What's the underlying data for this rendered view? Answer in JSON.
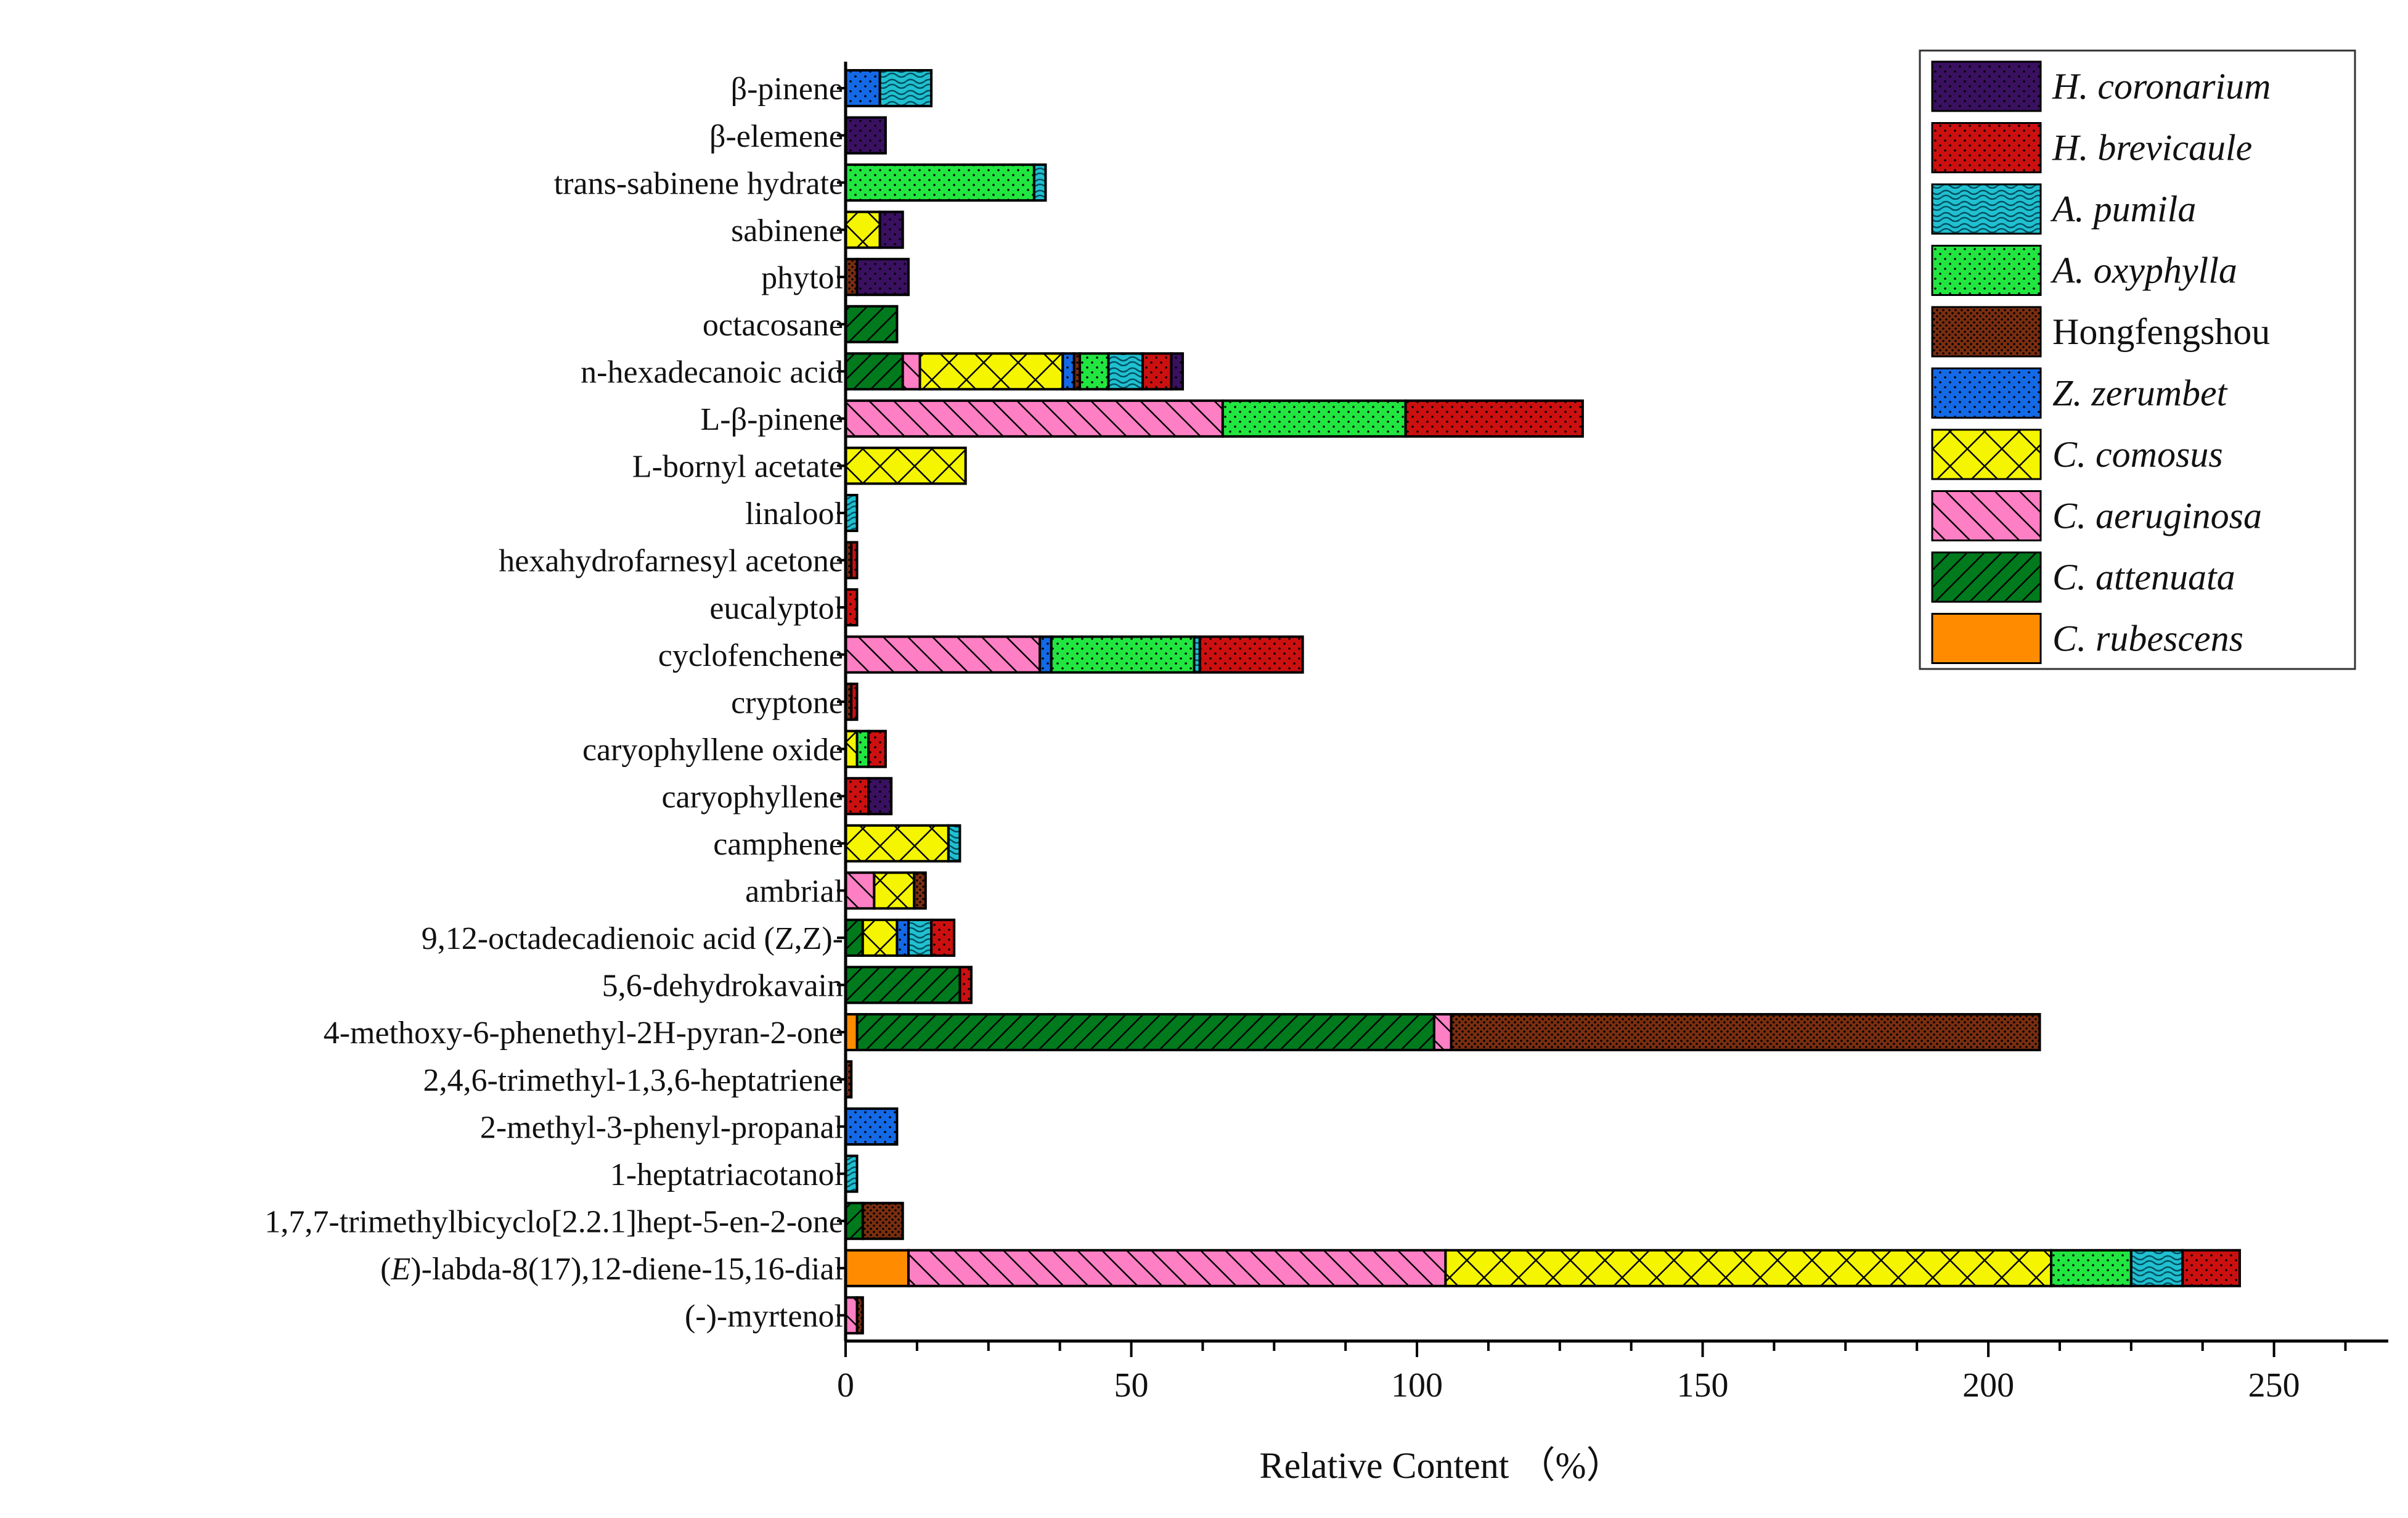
{
  "chart_data": {
    "type": "bar",
    "orientation": "horizontal",
    "stacked": true,
    "title": "",
    "xlabel": "Relative Content （%）",
    "ylabel": "",
    "xlim": [
      0,
      270
    ],
    "xticks": [
      "0",
      "50",
      "100",
      "150",
      "200",
      "250"
    ],
    "xtick_values": [
      0,
      50,
      100,
      150,
      200,
      250
    ],
    "grid": false,
    "legend_position": "top-right",
    "categories": [
      "β-pinene",
      "β-elemene",
      "trans-sabinene hydrate",
      "sabinene",
      "phytol",
      "octacosane",
      "n-hexadecanoic acid",
      "L-β-pinene",
      "L-bornyl acetate",
      "linalool",
      "hexahydrofarnesyl acetone",
      "eucalyptol",
      "cyclofenchene",
      "cryptone",
      "caryophyllene oxide",
      "caryophyllene",
      "camphene",
      "ambrial",
      "9,12-octadecadienoic acid (Z,Z)-",
      "5,6-dehydrokavain",
      "4-methoxy-6-phenethyl-2H-pyran-2-one",
      "2,4,6-trimethyl-1,3,6-heptatriene",
      "2-methyl-3-phenyl-propanal",
      "1-heptatriacotanol",
      "1,7,7-trimethylbicyclo[2.2.1]hept-5-en-2-one",
      "(E)-labda-8(17),12-diene-15,16-dial",
      "(-)-myrtenol"
    ],
    "category_italic_prefix": {
      "(E)-labda-8(17),12-diene-15,16-dial": "E"
    },
    "series": [
      {
        "name": "C. rubescens",
        "italic": true,
        "color": "#ff8c00",
        "pattern": "solid",
        "values": [
          0,
          0,
          0,
          0,
          0,
          0,
          0,
          0,
          0,
          0,
          0,
          0,
          0,
          0,
          0,
          0,
          0,
          0,
          0,
          0,
          2,
          0,
          0,
          0,
          0,
          11,
          0
        ]
      },
      {
        "name": "C. attenuata",
        "italic": true,
        "color": "#007a1c",
        "pattern": "diag-left",
        "values": [
          0,
          0,
          0,
          0,
          0,
          9,
          10,
          0,
          0,
          0,
          0,
          0,
          0,
          0,
          0,
          0,
          0,
          0,
          3,
          20,
          101,
          0,
          0,
          0,
          3,
          0,
          0
        ]
      },
      {
        "name": "C. aeruginosa",
        "italic": true,
        "color": "#ff7fc4",
        "pattern": "diag-right",
        "values": [
          0,
          0,
          0,
          0,
          0,
          0,
          3,
          66,
          0,
          0,
          0,
          0,
          34,
          0,
          0,
          0,
          0,
          5,
          0,
          0,
          3,
          0,
          0,
          0,
          0,
          94,
          2
        ]
      },
      {
        "name": "C. comosus",
        "italic": true,
        "color": "#f5f500",
        "pattern": "crosshatch",
        "values": [
          0,
          0,
          0,
          6,
          0,
          0,
          25,
          0,
          21,
          0,
          0,
          0,
          0,
          0,
          2,
          0,
          18,
          7,
          6,
          0,
          0,
          0,
          0,
          0,
          0,
          106,
          0
        ]
      },
      {
        "name": "Z. zerumbet",
        "italic": true,
        "color": "#1469e6",
        "pattern": "dots",
        "values": [
          6,
          0,
          0,
          0,
          0,
          0,
          2,
          0,
          0,
          0,
          0,
          0,
          2,
          0,
          0,
          0,
          0,
          0,
          2,
          0,
          0,
          0,
          9,
          0,
          0,
          0,
          0
        ]
      },
      {
        "name": "Hongfengshou",
        "italic": false,
        "color": "#7a2e10",
        "pattern": "dense-dots",
        "values": [
          0,
          0,
          0,
          0,
          2,
          0,
          1,
          0,
          0,
          0,
          1,
          0,
          0,
          1,
          0,
          0,
          0,
          2,
          0,
          0,
          103,
          1,
          0,
          0,
          7,
          0,
          1
        ]
      },
      {
        "name": "A. oxyphylla",
        "italic": true,
        "color": "#22e640",
        "pattern": "dots",
        "values": [
          0,
          0,
          33,
          0,
          0,
          0,
          5,
          32,
          0,
          0,
          0,
          0,
          25,
          0,
          2,
          0,
          0,
          0,
          0,
          0,
          0,
          0,
          0,
          0,
          0,
          14,
          0
        ]
      },
      {
        "name": "A. pumila",
        "italic": true,
        "color": "#20c0d0",
        "pattern": "waves",
        "values": [
          9,
          0,
          2,
          0,
          0,
          0,
          6,
          0,
          0,
          2,
          0,
          0,
          1,
          0,
          0,
          0,
          2,
          0,
          4,
          0,
          0,
          0,
          0,
          2,
          0,
          9,
          0
        ]
      },
      {
        "name": "H. brevicaule",
        "italic": true,
        "color": "#cc1010",
        "pattern": "dots",
        "values": [
          0,
          0,
          0,
          0,
          0,
          0,
          5,
          31,
          0,
          0,
          1,
          2,
          18,
          1,
          3,
          4,
          0,
          0,
          4,
          2,
          0,
          0,
          0,
          0,
          0,
          10,
          0
        ]
      },
      {
        "name": "H. coronarium",
        "italic": true,
        "color": "#3a1060",
        "pattern": "dots",
        "values": [
          0,
          7,
          0,
          4,
          9,
          0,
          2,
          0,
          0,
          0,
          0,
          0,
          0,
          0,
          0,
          4,
          0,
          0,
          0,
          0,
          0,
          0,
          0,
          0,
          0,
          0,
          0
        ]
      }
    ],
    "legend_order": [
      "H. coronarium",
      "H. brevicaule",
      "A. pumila",
      "A. oxyphylla",
      "Hongfengshou",
      "Z. zerumbet",
      "C. comosus",
      "C. aeruginosa",
      "C. attenuata",
      "C. rubescens"
    ]
  }
}
